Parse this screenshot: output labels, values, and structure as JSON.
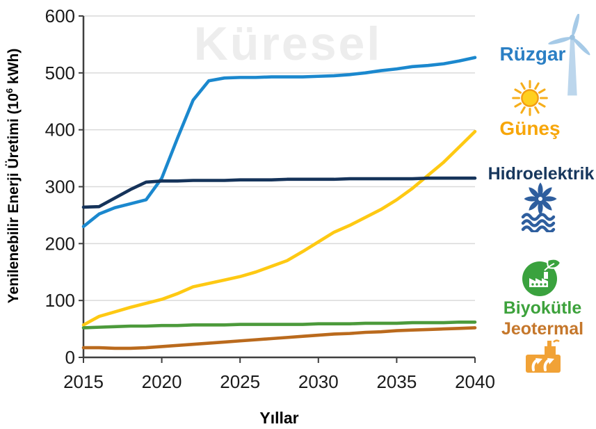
{
  "watermark": "Küresel",
  "y_axis": {
    "title_prefix": "Yenilenebilir Enerji Üretimi (10",
    "title_sup": "6",
    "title_suffix": " kWh)"
  },
  "x_axis": {
    "title": "Yıllar"
  },
  "legend": {
    "items": [
      {
        "id": "ruzgar",
        "label": "Rüzgar",
        "label_color": "#2b7fc4",
        "icon": "wind-turbine-icon"
      },
      {
        "id": "gunes",
        "label": "Güneş",
        "label_color": "#f7a60a",
        "icon": "sun-icon"
      },
      {
        "id": "hidroelektrik",
        "label": "Hidroelektrik",
        "label_color": "#17375d",
        "icon": "hydro-turbine-icon"
      },
      {
        "id": "biyokutle",
        "label": "Biyokütle",
        "label_color": "#3da23c",
        "icon": "biomass-plant-icon"
      },
      {
        "id": "jeotermal",
        "label": "Jeotermal",
        "label_color": "#c5772b",
        "icon": "geothermal-plant-icon"
      }
    ]
  },
  "chart_data": {
    "type": "line",
    "title": "",
    "watermark": "Küresel",
    "xlabel": "Yıllar",
    "ylabel": "Yenilenebilir Enerji Üretimi (10⁶ kWh)",
    "xlim": [
      2015,
      2040
    ],
    "ylim": [
      0,
      600
    ],
    "xticks": [
      2015,
      2020,
      2025,
      2030,
      2035,
      2040
    ],
    "yticks": [
      0,
      100,
      200,
      300,
      400,
      500,
      600
    ],
    "grid": "horizontal",
    "legend_position": "right",
    "x": [
      2015,
      2016,
      2017,
      2018,
      2019,
      2020,
      2021,
      2022,
      2023,
      2024,
      2025,
      2026,
      2027,
      2028,
      2029,
      2030,
      2031,
      2032,
      2033,
      2034,
      2035,
      2036,
      2037,
      2038,
      2039,
      2040
    ],
    "series": [
      {
        "id": "ruzgar",
        "name": "Rüzgar",
        "color": "#1b88ce",
        "values": [
          230,
          252,
          263,
          270,
          277,
          315,
          385,
          452,
          486,
          491,
          492,
          492,
          493,
          493,
          493,
          494,
          495,
          497,
          500,
          504,
          507,
          511,
          513,
          516,
          521,
          527
        ]
      },
      {
        "id": "gunes",
        "name": "Güneş",
        "color": "#fec913",
        "values": [
          57,
          72,
          80,
          88,
          95,
          102,
          112,
          124,
          130,
          136,
          142,
          150,
          160,
          170,
          186,
          203,
          220,
          232,
          246,
          260,
          277,
          297,
          320,
          343,
          370,
          397
        ]
      },
      {
        "id": "hidroelektrik",
        "name": "Hidroelektrik",
        "color": "#15335a",
        "values": [
          264,
          265,
          280,
          295,
          308,
          310,
          310,
          311,
          311,
          311,
          312,
          312,
          312,
          313,
          313,
          313,
          313,
          314,
          314,
          314,
          314,
          314,
          315,
          315,
          315,
          315
        ]
      },
      {
        "id": "biyokutle",
        "name": "Biyokütle",
        "color": "#4c9a3b",
        "values": [
          52,
          53,
          54,
          55,
          55,
          56,
          56,
          57,
          57,
          57,
          58,
          58,
          58,
          58,
          58,
          59,
          59,
          59,
          60,
          60,
          60,
          61,
          61,
          61,
          62,
          62
        ]
      },
      {
        "id": "jeotermal",
        "name": "Jeotermal",
        "color": "#ba6a1d",
        "values": [
          17,
          17,
          16,
          16,
          17,
          19,
          21,
          23,
          25,
          27,
          29,
          31,
          33,
          35,
          37,
          39,
          41,
          42,
          44,
          45,
          47,
          48,
          49,
          50,
          51,
          52
        ]
      }
    ]
  }
}
